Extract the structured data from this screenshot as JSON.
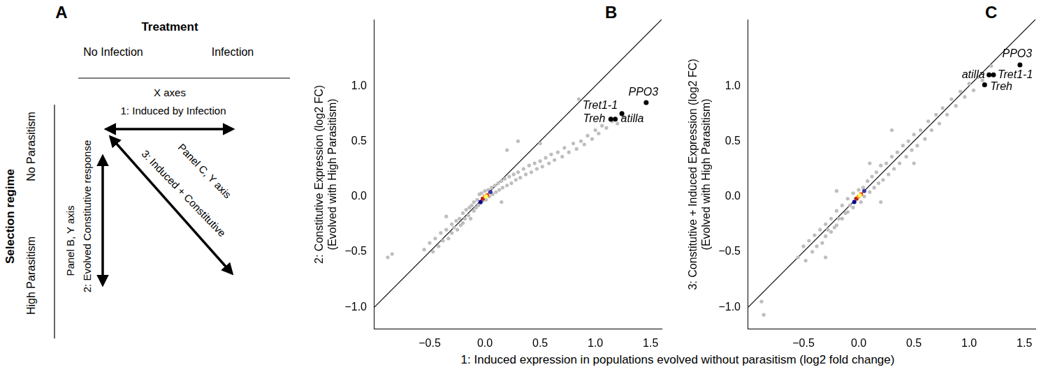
{
  "diagram": {
    "panel": "A",
    "header": "Treatment",
    "columns": [
      "No Infection",
      "Infection"
    ],
    "x_axes_label": "X axes",
    "arrow_1": "1: Induced by Infection",
    "row_header": "Selection regime",
    "rows": [
      "No Parasitism",
      "High Parasitism"
    ],
    "arrow_2": "2: Evolved Constitutive response",
    "arrow_2_note": "Panel B, Y axis",
    "arrow_3": "3: Induced + Constitutive",
    "arrow_3_note": "Panel C, Y axis"
  },
  "x_label": "1: Induced expression in populations evolved without parasitism (log2 fold change)",
  "chart_data": [
    {
      "type": "scatter",
      "panel": "B",
      "y_label": [
        "2: Constitutive Expression (log2 FC)",
        "(Evolved with High Parasitism)"
      ],
      "xlim": [
        -1.0,
        1.6
      ],
      "ylim": [
        -1.2,
        1.6
      ],
      "xticks": [
        {
          "value": -0.5,
          "label": "−0.5"
        },
        {
          "value": 0,
          "label": "0.0"
        },
        {
          "value": 0.5,
          "label": "0.5"
        },
        {
          "value": 1,
          "label": "1.0"
        },
        {
          "value": 1.5,
          "label": "1.5"
        }
      ],
      "yticks": [
        {
          "value": -1,
          "label": "−1.0"
        },
        {
          "value": -0.5,
          "label": "−0.5"
        },
        {
          "value": 0,
          "label": "0.0"
        },
        {
          "value": 0.5,
          "label": "0.5"
        },
        {
          "value": 1,
          "label": "1.0"
        }
      ],
      "grid": false,
      "reference_line": {
        "slope": 1,
        "intercept": 0
      },
      "series": [
        {
          "color": "#bebebe",
          "marker": "circle",
          "x": [
            -0.88,
            -0.84,
            -0.55,
            -0.5,
            -0.47,
            -0.45,
            -0.42,
            -0.4,
            -0.38,
            -0.35,
            -0.33,
            -0.3,
            -0.3,
            -0.28,
            -0.26,
            -0.25,
            -0.23,
            -0.22,
            -0.2,
            -0.2,
            -0.18,
            -0.17,
            -0.15,
            -0.14,
            -0.13,
            -0.12,
            -0.1,
            -0.1,
            -0.08,
            -0.07,
            -0.06,
            -0.05,
            -0.04,
            -0.03,
            -0.02,
            0.0,
            0.01,
            0.03,
            0.04,
            0.06,
            0.07,
            0.09,
            0.1,
            0.12,
            0.13,
            0.15,
            0.16,
            0.18,
            0.2,
            0.22,
            0.24,
            0.26,
            0.28,
            0.3,
            0.32,
            0.35,
            0.37,
            0.4,
            0.42,
            0.45,
            0.47,
            0.5,
            0.52,
            0.55,
            0.58,
            0.6,
            0.63,
            0.66,
            0.7,
            0.72,
            0.76,
            0.8,
            0.83,
            0.87,
            0.9,
            0.93,
            0.97,
            1.0,
            1.03,
            1.06,
            1.1,
            1.15,
            1.2,
            1.25,
            0.3,
            0.2,
            0.5,
            0.15,
            -0.35,
            0.85
          ],
          "values": [
            -0.55,
            -0.52,
            -0.48,
            -0.42,
            -0.5,
            -0.38,
            -0.45,
            -0.33,
            -0.4,
            -0.3,
            -0.38,
            -0.25,
            -0.33,
            -0.28,
            -0.22,
            -0.3,
            -0.2,
            -0.26,
            -0.15,
            -0.24,
            -0.2,
            -0.12,
            -0.17,
            -0.1,
            -0.2,
            -0.08,
            -0.13,
            -0.05,
            -0.1,
            -0.03,
            -0.08,
            0.02,
            -0.06,
            0.03,
            -0.04,
            0.05,
            -0.03,
            0.06,
            0.0,
            0.08,
            0.02,
            0.1,
            0.04,
            0.12,
            0.06,
            0.14,
            0.08,
            0.16,
            0.1,
            0.18,
            0.12,
            0.2,
            0.15,
            0.22,
            0.17,
            0.25,
            0.2,
            0.28,
            0.22,
            0.3,
            0.25,
            0.32,
            0.27,
            0.35,
            0.3,
            0.38,
            0.33,
            0.4,
            0.36,
            0.44,
            0.4,
            0.48,
            0.43,
            0.5,
            0.47,
            0.55,
            0.52,
            0.6,
            0.57,
            0.64,
            0.62,
            0.68,
            0.66,
            0.72,
            0.5,
            0.42,
            0.48,
            -0.05,
            -0.18,
            0.88
          ]
        },
        {
          "colors": [
            "#00008b",
            "#3a3aa8",
            "#b22222",
            "#ff4500",
            "#ff8c00",
            "#ffff66"
          ],
          "x": [
            -0.04,
            0.05,
            -0.02,
            0.02,
            0.0,
            0.01
          ],
          "values": [
            -0.05,
            0.04,
            -0.02,
            0.01,
            0.0,
            0.0
          ]
        },
        {
          "color": "#000000",
          "labels": [
            "PPO3",
            "Tret1-1",
            "Treh",
            "atilla"
          ],
          "x": [
            1.46,
            1.24,
            1.14,
            1.18
          ],
          "values": [
            0.85,
            0.75,
            0.7,
            0.7
          ]
        }
      ]
    },
    {
      "type": "scatter",
      "panel": "C",
      "y_label": [
        "3: Constitutive + Induced Expression (log2 FC)",
        "(Evolved with High Parasitism)"
      ],
      "xlim": [
        -1.0,
        1.6
      ],
      "ylim": [
        -1.2,
        1.6
      ],
      "xticks": [
        {
          "value": -0.5,
          "label": "−0.5"
        },
        {
          "value": 0,
          "label": "0.0"
        },
        {
          "value": 0.5,
          "label": "0.5"
        },
        {
          "value": 1,
          "label": "1.0"
        },
        {
          "value": 1.5,
          "label": "1.5"
        }
      ],
      "yticks": [
        {
          "value": -1,
          "label": "−1.0"
        },
        {
          "value": -0.5,
          "label": "−0.5"
        },
        {
          "value": 0,
          "label": "0.0"
        },
        {
          "value": 0.5,
          "label": "0.5"
        },
        {
          "value": 1,
          "label": "1.0"
        }
      ],
      "grid": false,
      "reference_line": {
        "slope": 1,
        "intercept": 0
      },
      "series": [
        {
          "color": "#bebebe",
          "marker": "circle",
          "x": [
            -0.88,
            -0.86,
            -0.55,
            -0.5,
            -0.48,
            -0.45,
            -0.42,
            -0.4,
            -0.38,
            -0.35,
            -0.33,
            -0.3,
            -0.3,
            -0.28,
            -0.25,
            -0.25,
            -0.22,
            -0.2,
            -0.2,
            -0.18,
            -0.15,
            -0.15,
            -0.12,
            -0.1,
            -0.1,
            -0.08,
            -0.05,
            -0.05,
            -0.03,
            0.0,
            0.02,
            0.04,
            0.05,
            0.08,
            0.1,
            0.12,
            0.14,
            0.16,
            0.18,
            0.2,
            0.22,
            0.25,
            0.27,
            0.3,
            0.32,
            0.35,
            0.37,
            0.4,
            0.43,
            0.45,
            0.48,
            0.5,
            0.53,
            0.56,
            0.6,
            0.63,
            0.66,
            0.7,
            0.73,
            0.76,
            0.8,
            0.84,
            0.88,
            0.92,
            0.96,
            1.0,
            1.04,
            1.08,
            1.12,
            1.2,
            0.3,
            0.5,
            -0.2,
            0.2,
            0.1,
            -0.3
          ],
          "values": [
            -0.95,
            -1.07,
            -0.55,
            -0.45,
            -0.58,
            -0.4,
            -0.5,
            -0.35,
            -0.45,
            -0.3,
            -0.42,
            -0.25,
            -0.36,
            -0.3,
            -0.2,
            -0.32,
            -0.28,
            -0.13,
            -0.26,
            -0.2,
            -0.08,
            -0.2,
            -0.15,
            -0.02,
            -0.14,
            -0.08,
            0.03,
            -0.1,
            -0.02,
            0.06,
            -0.05,
            0.08,
            0.0,
            0.14,
            0.04,
            0.18,
            0.08,
            0.22,
            0.12,
            0.28,
            0.15,
            0.3,
            0.2,
            0.36,
            0.25,
            0.4,
            0.3,
            0.46,
            0.36,
            0.5,
            0.42,
            0.56,
            0.46,
            0.6,
            0.52,
            0.68,
            0.6,
            0.74,
            0.66,
            0.8,
            0.74,
            0.88,
            0.82,
            0.95,
            0.9,
            1.02,
            0.96,
            1.08,
            1.05,
            1.18,
            0.6,
            0.3,
            0.05,
            -0.05,
            0.3,
            -0.55
          ]
        },
        {
          "colors": [
            "#00008b",
            "#3a3aa8",
            "#b22222",
            "#ff4500",
            "#ff8c00",
            "#ffff66"
          ],
          "x": [
            -0.04,
            0.05,
            -0.02,
            0.02,
            0.0,
            0.01
          ],
          "values": [
            -0.05,
            0.05,
            -0.02,
            0.02,
            0.0,
            0.01
          ]
        },
        {
          "color": "#000000",
          "labels": [
            "PPO3",
            "atilla",
            "Tret1-1",
            "Treh"
          ],
          "x": [
            1.46,
            1.18,
            1.22,
            1.14
          ],
          "values": [
            1.19,
            1.1,
            1.1,
            1.01
          ]
        }
      ]
    }
  ]
}
